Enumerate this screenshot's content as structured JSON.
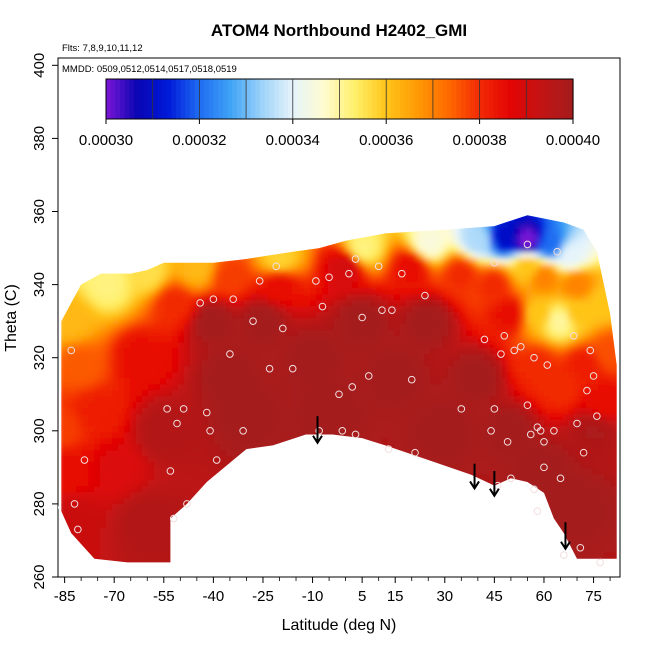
{
  "chart_data": {
    "type": "heatmap",
    "title": "ATOM4 Northbound H2402_GMI",
    "annotations": {
      "flights": "Flts: 7,8,9,10,11,12",
      "dates": "MMDD: 0509,0512,0514,0517,0518,0519"
    },
    "xlabel": "Latitude (deg N)",
    "ylabel": "Theta (C)",
    "xlim": [
      -87,
      83
    ],
    "ylim": [
      260,
      402
    ],
    "xticks": [
      -85,
      -70,
      -55,
      -40,
      -25,
      -10,
      5,
      15,
      30,
      45,
      60,
      75
    ],
    "yticks": [
      260,
      280,
      300,
      320,
      340,
      360,
      380,
      400
    ],
    "colorbar": {
      "min": 0.0003,
      "max": 0.0004,
      "ticks": [
        "0.00030",
        "0.00032",
        "0.00034",
        "0.00036",
        "0.00038",
        "0.00040"
      ],
      "colors": [
        "#7b16d6",
        "#0a06b3",
        "#0019d9",
        "#1f6cf2",
        "#3fa3f5",
        "#9dd2f9",
        "#e6f4fb",
        "#fffbd0",
        "#fff06a",
        "#ffc519",
        "#ff9a05",
        "#ff6a00",
        "#f22a05",
        "#e30404",
        "#c21414",
        "#a41c1c"
      ]
    },
    "field": {
      "description": "interpolated H2402 mixing ratio vs latitude and potential temperature",
      "top_boundary": [
        [
          -86,
          330
        ],
        [
          -80,
          340
        ],
        [
          -74,
          343
        ],
        [
          -65,
          343
        ],
        [
          -60,
          344
        ],
        [
          -55,
          346
        ],
        [
          -40,
          346
        ],
        [
          -30,
          347
        ],
        [
          -16,
          349
        ],
        [
          -8,
          350
        ],
        [
          0,
          352
        ],
        [
          12,
          354
        ],
        [
          30,
          355
        ],
        [
          45,
          356
        ],
        [
          55,
          359
        ],
        [
          66,
          357
        ],
        [
          72,
          355
        ],
        [
          76,
          349
        ],
        [
          80,
          332
        ],
        [
          82,
          318
        ]
      ],
      "bottom_boundary": [
        [
          82,
          265
        ],
        [
          70,
          265
        ],
        [
          66,
          272
        ],
        [
          63,
          276
        ],
        [
          60,
          283
        ],
        [
          55,
          286
        ],
        [
          50,
          287
        ],
        [
          45,
          285
        ],
        [
          38,
          288
        ],
        [
          25,
          292
        ],
        [
          12,
          296
        ],
        [
          5,
          298
        ],
        [
          -4,
          299
        ],
        [
          -12,
          299
        ],
        [
          -22,
          296
        ],
        [
          -30,
          295
        ],
        [
          -38,
          289
        ],
        [
          -42,
          286
        ],
        [
          -48,
          280
        ],
        [
          -53,
          276
        ],
        [
          -53,
          264
        ],
        [
          -66,
          264
        ],
        [
          -76,
          265
        ],
        [
          -83,
          272
        ],
        [
          -86,
          278
        ]
      ],
      "points": [
        {
          "lat": 55,
          "theta": 352,
          "value": 0.0003
        },
        {
          "lat": 48,
          "theta": 353,
          "value": 0.00031
        },
        {
          "lat": 62,
          "theta": 351,
          "value": 0.00032
        },
        {
          "lat": 40,
          "theta": 352,
          "value": 0.000335
        },
        {
          "lat": 25,
          "theta": 351,
          "value": 0.000345
        },
        {
          "lat": 5,
          "theta": 350,
          "value": 0.000352
        },
        {
          "lat": -20,
          "theta": 347,
          "value": 0.000358
        },
        {
          "lat": -45,
          "theta": 344.5,
          "value": 0.000362
        },
        {
          "lat": -60,
          "theta": 343,
          "value": 0.000356
        },
        {
          "lat": -72,
          "theta": 340,
          "value": 0.000352
        },
        {
          "lat": -83,
          "theta": 330,
          "value": 0.000362
        },
        {
          "lat": -80,
          "theta": 318,
          "value": 0.000375
        },
        {
          "lat": -75,
          "theta": 305,
          "value": 0.000382
        },
        {
          "lat": -84,
          "theta": 290,
          "value": 0.000385
        },
        {
          "lat": -70,
          "theta": 290,
          "value": 0.000388
        },
        {
          "lat": -82,
          "theta": 275,
          "value": 0.000392
        },
        {
          "lat": -60,
          "theta": 275,
          "value": 0.000397
        },
        {
          "lat": -55,
          "theta": 300,
          "value": 0.000397
        },
        {
          "lat": -62,
          "theta": 320,
          "value": 0.000385
        },
        {
          "lat": -52,
          "theta": 335,
          "value": 0.00038
        },
        {
          "lat": -40,
          "theta": 330,
          "value": 0.0004
        },
        {
          "lat": -35,
          "theta": 315,
          "value": 0.0004
        },
        {
          "lat": -25,
          "theta": 330,
          "value": 0.0004
        },
        {
          "lat": -10,
          "theta": 320,
          "value": 0.0004
        },
        {
          "lat": 5,
          "theta": 330,
          "value": 0.0004
        },
        {
          "lat": 15,
          "theta": 315,
          "value": 0.0004
        },
        {
          "lat": 25,
          "theta": 330,
          "value": 0.0004
        },
        {
          "lat": 40,
          "theta": 315,
          "value": 0.0004
        },
        {
          "lat": 50,
          "theta": 300,
          "value": 0.0004
        },
        {
          "lat": 60,
          "theta": 290,
          "value": 0.0004
        },
        {
          "lat": 70,
          "theta": 280,
          "value": 0.0004
        },
        {
          "lat": 75,
          "theta": 300,
          "value": 0.000398
        },
        {
          "lat": 30,
          "theta": 300,
          "value": 0.0004
        },
        {
          "lat": -5,
          "theta": 305,
          "value": 0.0004
        },
        {
          "lat": -30,
          "theta": 305,
          "value": 0.0004
        },
        {
          "lat": -20,
          "theta": 340,
          "value": 0.000385
        },
        {
          "lat": -35,
          "theta": 342,
          "value": 0.000378
        },
        {
          "lat": 0,
          "theta": 345,
          "value": 0.00039
        },
        {
          "lat": 20,
          "theta": 345,
          "value": 0.000385
        },
        {
          "lat": 35,
          "theta": 343,
          "value": 0.00038
        },
        {
          "lat": 45,
          "theta": 340,
          "value": 0.00038
        },
        {
          "lat": 50,
          "theta": 332,
          "value": 0.000385
        },
        {
          "lat": 58,
          "theta": 318,
          "value": 0.00038
        },
        {
          "lat": 65,
          "theta": 312,
          "value": 0.00038
        },
        {
          "lat": 72,
          "theta": 318,
          "value": 0.000382
        },
        {
          "lat": 78,
          "theta": 308,
          "value": 0.000385
        },
        {
          "lat": 80,
          "theta": 322,
          "value": 0.000376
        },
        {
          "lat": 78,
          "theta": 335,
          "value": 0.00036
        },
        {
          "lat": 70,
          "theta": 340,
          "value": 0.00037
        },
        {
          "lat": 68,
          "theta": 348,
          "value": 0.00034
        },
        {
          "lat": 60,
          "theta": 342,
          "value": 0.00037
        },
        {
          "lat": 55,
          "theta": 345,
          "value": 0.00036
        },
        {
          "lat": 58,
          "theta": 332,
          "value": 0.00036
        },
        {
          "lat": 65,
          "theta": 330,
          "value": 0.00035
        },
        {
          "lat": 70,
          "theta": 332,
          "value": 0.00036
        },
        {
          "lat": -86,
          "theta": 300,
          "value": 0.000378
        }
      ]
    },
    "sample_points": [
      {
        "lat": -83,
        "theta": 322
      },
      {
        "lat": -82,
        "theta": 280
      },
      {
        "lat": -81,
        "theta": 273
      },
      {
        "lat": -79,
        "theta": 292
      },
      {
        "lat": -54,
        "theta": 306
      },
      {
        "lat": -53,
        "theta": 289
      },
      {
        "lat": -52,
        "theta": 276
      },
      {
        "lat": -51,
        "theta": 302
      },
      {
        "lat": -49,
        "theta": 306
      },
      {
        "lat": -48,
        "theta": 280
      },
      {
        "lat": -44,
        "theta": 335
      },
      {
        "lat": -42,
        "theta": 305
      },
      {
        "lat": -41,
        "theta": 300
      },
      {
        "lat": -40,
        "theta": 336
      },
      {
        "lat": -39,
        "theta": 292
      },
      {
        "lat": -35,
        "theta": 321
      },
      {
        "lat": -34,
        "theta": 336
      },
      {
        "lat": -31,
        "theta": 300
      },
      {
        "lat": -28,
        "theta": 330
      },
      {
        "lat": -26,
        "theta": 341
      },
      {
        "lat": -23,
        "theta": 317
      },
      {
        "lat": -21,
        "theta": 345
      },
      {
        "lat": -19,
        "theta": 328
      },
      {
        "lat": -16,
        "theta": 317
      },
      {
        "lat": -9,
        "theta": 341
      },
      {
        "lat": -8,
        "theta": 300
      },
      {
        "lat": -7,
        "theta": 334
      },
      {
        "lat": -5,
        "theta": 342
      },
      {
        "lat": -2,
        "theta": 310
      },
      {
        "lat": -1,
        "theta": 300
      },
      {
        "lat": 1,
        "theta": 343
      },
      {
        "lat": 2,
        "theta": 312
      },
      {
        "lat": 3,
        "theta": 299
      },
      {
        "lat": 3,
        "theta": 347
      },
      {
        "lat": 5,
        "theta": 331
      },
      {
        "lat": 7,
        "theta": 315
      },
      {
        "lat": 10,
        "theta": 345
      },
      {
        "lat": 11,
        "theta": 333
      },
      {
        "lat": 13,
        "theta": 295
      },
      {
        "lat": 14,
        "theta": 333
      },
      {
        "lat": 17,
        "theta": 343
      },
      {
        "lat": 20,
        "theta": 314
      },
      {
        "lat": 21,
        "theta": 294
      },
      {
        "lat": 24,
        "theta": 337
      },
      {
        "lat": 35,
        "theta": 306
      },
      {
        "lat": 42,
        "theta": 325
      },
      {
        "lat": 44,
        "theta": 300
      },
      {
        "lat": 45,
        "theta": 306
      },
      {
        "lat": 45,
        "theta": 346
      },
      {
        "lat": 46,
        "theta": 285
      },
      {
        "lat": 47,
        "theta": 321
      },
      {
        "lat": 48,
        "theta": 326
      },
      {
        "lat": 49,
        "theta": 297
      },
      {
        "lat": 50,
        "theta": 287
      },
      {
        "lat": 51,
        "theta": 322
      },
      {
        "lat": 53,
        "theta": 323
      },
      {
        "lat": 55,
        "theta": 307
      },
      {
        "lat": 56,
        "theta": 299
      },
      {
        "lat": 57,
        "theta": 320
      },
      {
        "lat": 57,
        "theta": 284
      },
      {
        "lat": 58,
        "theta": 301
      },
      {
        "lat": 58,
        "theta": 278
      },
      {
        "lat": 59,
        "theta": 300
      },
      {
        "lat": 60,
        "theta": 297
      },
      {
        "lat": 60,
        "theta": 290
      },
      {
        "lat": 61,
        "theta": 318
      },
      {
        "lat": 63,
        "theta": 300
      },
      {
        "lat": 64,
        "theta": 349
      },
      {
        "lat": 65,
        "theta": 287
      },
      {
        "lat": 66,
        "theta": 266
      },
      {
        "lat": 69,
        "theta": 326
      },
      {
        "lat": 70,
        "theta": 302
      },
      {
        "lat": 71,
        "theta": 268
      },
      {
        "lat": 72,
        "theta": 294
      },
      {
        "lat": 73,
        "theta": 311
      },
      {
        "lat": 74,
        "theta": 322
      },
      {
        "lat": 75,
        "theta": 315
      },
      {
        "lat": 76,
        "theta": 304
      },
      {
        "lat": 77,
        "theta": 264
      },
      {
        "lat": 55,
        "theta": 351
      },
      {
        "lat": -88,
        "theta": 279
      }
    ],
    "arrows": [
      {
        "lat": -8.5,
        "theta_start": 304,
        "theta_end": 297
      },
      {
        "lat": 39,
        "theta_start": 291,
        "theta_end": 284.5
      },
      {
        "lat": 45,
        "theta_start": 289,
        "theta_end": 282.5
      },
      {
        "lat": 66.5,
        "theta_start": 275,
        "theta_end": 268
      }
    ]
  }
}
